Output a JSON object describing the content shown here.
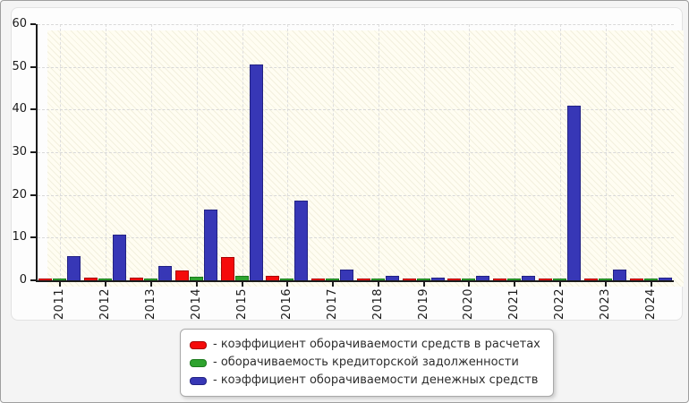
{
  "window": {
    "background": "#f4f4f4",
    "border_color": "#9e9e9e",
    "panel_background": "#fdfdfd",
    "panel_border_color": "#e2e2e2"
  },
  "chart_data": {
    "type": "bar",
    "title": "",
    "xlabel": "",
    "ylabel": "",
    "categories": [
      "2011",
      "2012",
      "2013",
      "2014",
      "2015",
      "2016",
      "2017",
      "2018",
      "2019",
      "2020",
      "2021",
      "2022",
      "2023",
      "2024"
    ],
    "series": [
      {
        "name": "коэффициент оборачиваемости средств в расчетах",
        "color": "#f50b0b",
        "border_color": "#a80303",
        "values": [
          0.4,
          0.7,
          0.6,
          2.3,
          5.4,
          1.0,
          0.5,
          0.4,
          0.5,
          0.4,
          0.4,
          0.3,
          0.3,
          0.3
        ]
      },
      {
        "name": "оборачиваемость кредиторской задолженности",
        "color": "#2ea32e",
        "border_color": "#1c7a1c",
        "values": [
          0.5,
          0.3,
          0.3,
          0.8,
          1.1,
          0.3,
          0.5,
          0.4,
          0.5,
          0.5,
          0.5,
          0.3,
          0.4,
          0.3
        ]
      },
      {
        "name": "коэффициент оборачиваемости денежных средств",
        "color": "#3737b6",
        "border_color": "#222284",
        "values": [
          5.6,
          10.6,
          3.4,
          16.5,
          50.5,
          18.6,
          2.6,
          1.0,
          0.6,
          1.0,
          1.0,
          41.0,
          2.5,
          0.6
        ]
      }
    ],
    "ylim": [
      0,
      60
    ],
    "yticks": [
      0,
      10,
      20,
      30,
      40,
      50,
      60
    ],
    "grid": true,
    "legend_position": "bottom-center",
    "legend_prefix": "- ",
    "plot_background": "#fffdf2",
    "gridline_color": "#dedede",
    "axis_color": "#1b1b1b"
  }
}
